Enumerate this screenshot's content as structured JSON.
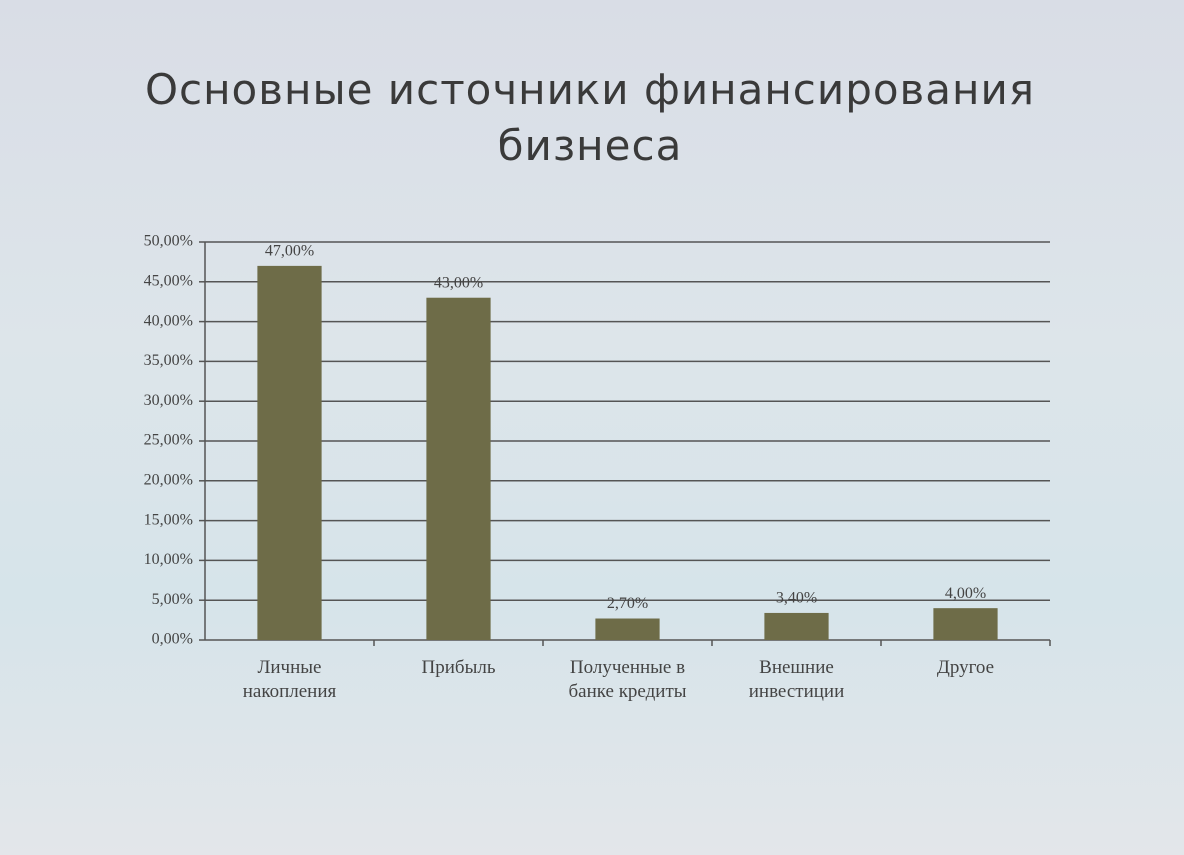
{
  "chart_data": {
    "type": "bar",
    "title": "Основные источники финансирования бизнеса",
    "categories": [
      "Личные накопления",
      "Прибыль",
      "Полученные в банке кредиты",
      "Внешние инвестиции",
      "Другое"
    ],
    "values": [
      47,
      43,
      2.7,
      3.4,
      4
    ],
    "value_labels": [
      "47,00%",
      "43,00%",
      "2,70%",
      "3,40%",
      "4,00%"
    ],
    "color": "#6e6c48",
    "ylim": [
      0,
      50
    ],
    "yticks": [
      {
        "value": 0,
        "label": "0,00%"
      },
      {
        "value": 5,
        "label": "5,00%"
      },
      {
        "value": 10,
        "label": "10,00%"
      },
      {
        "value": 15,
        "label": "15,00%"
      },
      {
        "value": 20,
        "label": "20,00%"
      },
      {
        "value": 25,
        "label": "25,00%"
      },
      {
        "value": 30,
        "label": "30,00%"
      },
      {
        "value": 35,
        "label": "35,00%"
      },
      {
        "value": 40,
        "label": "40,00%"
      },
      {
        "value": 45,
        "label": "45,00%"
      },
      {
        "value": 50,
        "label": "50,00%"
      }
    ],
    "grid": true
  }
}
